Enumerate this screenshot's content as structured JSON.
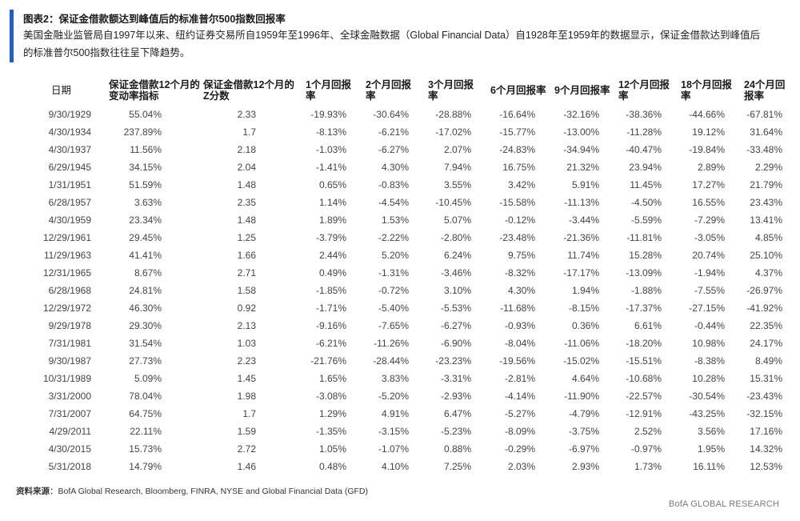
{
  "header": {
    "title": "图表2：保证金借款额达到峰值后的标准普尔500指数回报率",
    "subtitle": "美国金融业监管局自1997年以来、纽约证券交易所自1959年至1996年、全球金融数据（Global Financial Data）自1928年至1959年的数据显示，保证金借款达到峰值后的标准普尔500指数往往呈下降趋势。"
  },
  "table": {
    "headers": {
      "date": "日期",
      "vol": "保证金借款12个月的变动率指标",
      "z": "保证金借款12个月的Z分数",
      "returns": [
        "1个月回报率",
        "2个月回报率",
        "3个月回报率",
        "6个月回报率",
        "9个月回报率",
        "12个月回报率",
        "18个月回报率",
        "24个月回报率"
      ]
    },
    "rows": [
      {
        "date": "9/30/1929",
        "vol": "55.04%",
        "z": "2.33",
        "r": [
          "-19.93%",
          "-30.64%",
          "-28.88%",
          "-16.64%",
          "-32.16%",
          "-38.36%",
          "-44.66%",
          "-67.81%"
        ]
      },
      {
        "date": "4/30/1934",
        "vol": "237.89%",
        "z": "1.7",
        "r": [
          "-8.13%",
          "-6.21%",
          "-17.02%",
          "-15.77%",
          "-13.00%",
          "-11.28%",
          "19.12%",
          "31.64%"
        ]
      },
      {
        "date": "4/30/1937",
        "vol": "11.56%",
        "z": "2.18",
        "r": [
          "-1.03%",
          "-6.27%",
          "2.07%",
          "-24.83%",
          "-34.94%",
          "-40.47%",
          "-19.84%",
          "-33.48%"
        ]
      },
      {
        "date": "6/29/1945",
        "vol": "34.15%",
        "z": "2.04",
        "r": [
          "-1.41%",
          "4.30%",
          "7.94%",
          "16.75%",
          "21.32%",
          "23.94%",
          "2.89%",
          "2.29%"
        ]
      },
      {
        "date": "1/31/1951",
        "vol": "51.59%",
        "z": "1.48",
        "r": [
          "0.65%",
          "-0.83%",
          "3.55%",
          "3.42%",
          "5.91%",
          "11.45%",
          "17.27%",
          "21.79%"
        ]
      },
      {
        "date": "6/28/1957",
        "vol": "3.63%",
        "z": "2.35",
        "r": [
          "1.14%",
          "-4.54%",
          "-10.45%",
          "-15.58%",
          "-11.13%",
          "-4.50%",
          "16.55%",
          "23.43%"
        ]
      },
      {
        "date": "4/30/1959",
        "vol": "23.34%",
        "z": "1.48",
        "r": [
          "1.89%",
          "1.53%",
          "5.07%",
          "-0.12%",
          "-3.44%",
          "-5.59%",
          "-7.29%",
          "13.41%"
        ]
      },
      {
        "date": "12/29/1961",
        "vol": "29.45%",
        "z": "1.25",
        "r": [
          "-3.79%",
          "-2.22%",
          "-2.80%",
          "-23.48%",
          "-21.36%",
          "-11.81%",
          "-3.05%",
          "4.85%"
        ]
      },
      {
        "date": "11/29/1963",
        "vol": "41.41%",
        "z": "1.66",
        "r": [
          "2.44%",
          "5.20%",
          "6.24%",
          "9.75%",
          "11.74%",
          "15.28%",
          "20.74%",
          "25.10%"
        ]
      },
      {
        "date": "12/31/1965",
        "vol": "8.67%",
        "z": "2.71",
        "r": [
          "0.49%",
          "-1.31%",
          "-3.46%",
          "-8.32%",
          "-17.17%",
          "-13.09%",
          "-1.94%",
          "4.37%"
        ]
      },
      {
        "date": "6/28/1968",
        "vol": "24.81%",
        "z": "1.58",
        "r": [
          "-1.85%",
          "-0.72%",
          "3.10%",
          "4.30%",
          "1.94%",
          "-1.88%",
          "-7.55%",
          "-26.97%"
        ]
      },
      {
        "date": "12/29/1972",
        "vol": "46.30%",
        "z": "0.92",
        "r": [
          "-1.71%",
          "-5.40%",
          "-5.53%",
          "-11.68%",
          "-8.15%",
          "-17.37%",
          "-27.15%",
          "-41.92%"
        ]
      },
      {
        "date": "9/29/1978",
        "vol": "29.30%",
        "z": "2.13",
        "r": [
          "-9.16%",
          "-7.65%",
          "-6.27%",
          "-0.93%",
          "0.36%",
          "6.61%",
          "-0.44%",
          "22.35%"
        ]
      },
      {
        "date": "7/31/1981",
        "vol": "31.54%",
        "z": "1.03",
        "r": [
          "-6.21%",
          "-11.26%",
          "-6.90%",
          "-8.04%",
          "-11.06%",
          "-18.20%",
          "10.98%",
          "24.17%"
        ]
      },
      {
        "date": "9/30/1987",
        "vol": "27.73%",
        "z": "2.23",
        "r": [
          "-21.76%",
          "-28.44%",
          "-23.23%",
          "-19.56%",
          "-15.02%",
          "-15.51%",
          "-8.38%",
          "8.49%"
        ]
      },
      {
        "date": "10/31/1989",
        "vol": "5.09%",
        "z": "1.45",
        "r": [
          "1.65%",
          "3.83%",
          "-3.31%",
          "-2.81%",
          "4.64%",
          "-10.68%",
          "10.28%",
          "15.31%"
        ]
      },
      {
        "date": "3/31/2000",
        "vol": "78.04%",
        "z": "1.98",
        "r": [
          "-3.08%",
          "-5.20%",
          "-2.93%",
          "-4.14%",
          "-11.90%",
          "-22.57%",
          "-30.54%",
          "-23.43%"
        ]
      },
      {
        "date": "7/31/2007",
        "vol": "64.75%",
        "z": "1.7",
        "r": [
          "1.29%",
          "4.91%",
          "6.47%",
          "-5.27%",
          "-4.79%",
          "-12.91%",
          "-43.25%",
          "-32.15%"
        ]
      },
      {
        "date": "4/29/2011",
        "vol": "22.11%",
        "z": "1.59",
        "r": [
          "-1.35%",
          "-3.15%",
          "-5.23%",
          "-8.09%",
          "-3.75%",
          "2.52%",
          "3.56%",
          "17.16%"
        ]
      },
      {
        "date": "4/30/2015",
        "vol": "15.73%",
        "z": "2.72",
        "r": [
          "1.05%",
          "-1.07%",
          "0.88%",
          "-0.29%",
          "-6.97%",
          "-0.97%",
          "1.95%",
          "14.32%"
        ]
      },
      {
        "date": "5/31/2018",
        "vol": "14.79%",
        "z": "1.46",
        "r": [
          "0.48%",
          "4.10%",
          "7.25%",
          "2.03%",
          "2.93%",
          "1.73%",
          "16.11%",
          "12.53%"
        ]
      }
    ]
  },
  "footer": {
    "source_label": "资料来源",
    "source_text": "：BofA Global Research, Bloomberg, FINRA, NYSE and Global Financial Data (GFD)",
    "brand": "BofA GLOBAL RESEARCH"
  },
  "colors": {
    "accent": "#1f5fbf"
  }
}
